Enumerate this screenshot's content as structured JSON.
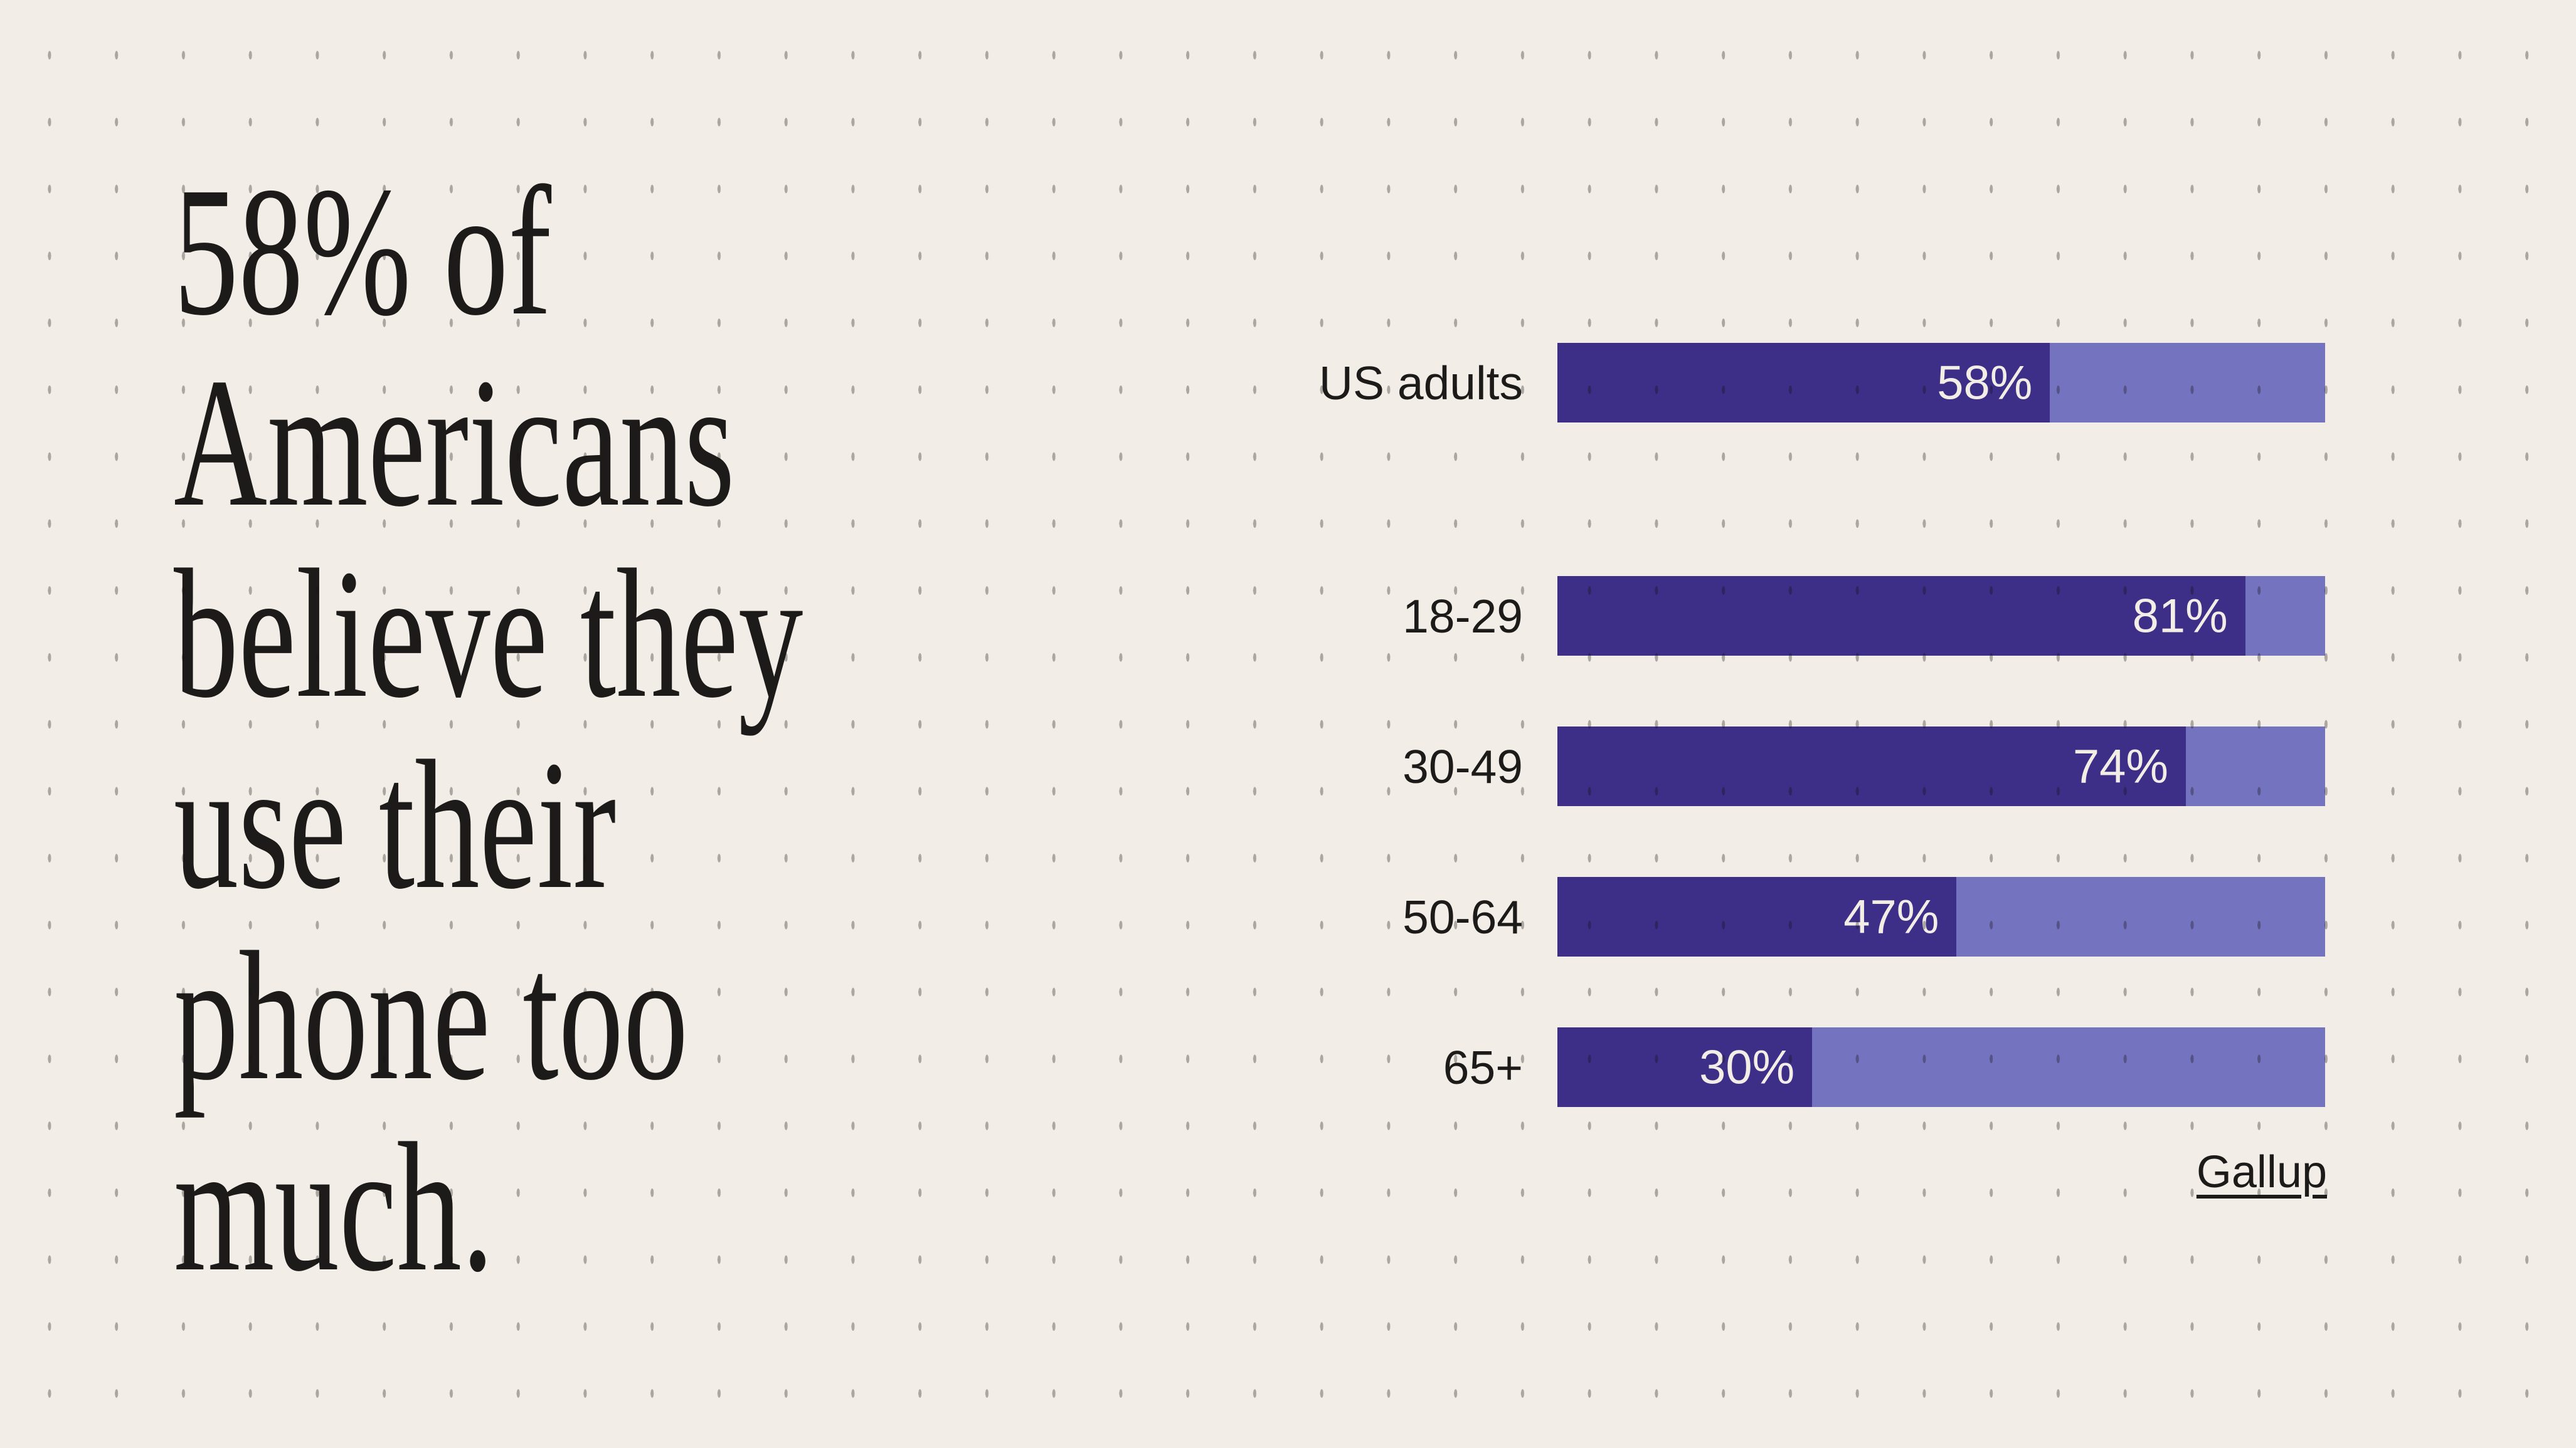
{
  "headline": {
    "lines": [
      "58% of",
      "Americans",
      "believe they",
      "use their",
      "phone too",
      "much."
    ],
    "full_text": "58% of Americans believe they use their phone too much."
  },
  "chart_data": {
    "type": "bar",
    "orientation": "horizontal",
    "categories": [
      "US adults",
      "18-29",
      "30-49",
      "50-64",
      "65+"
    ],
    "values": [
      58,
      81,
      74,
      47,
      30
    ],
    "value_labels": [
      "58%",
      "81%",
      "74%",
      "47%",
      "30%"
    ],
    "series": [
      {
        "name": "Believe they use their phone too much",
        "values": [
          58,
          81,
          74,
          47,
          30
        ]
      }
    ],
    "xlabel": "",
    "ylabel": "",
    "xlim": [
      0,
      90.4
    ],
    "grid": false,
    "legend": false,
    "group_gap_after_index": 0,
    "source": "Gallup"
  },
  "colors": {
    "background": "#f2eee7",
    "ink": "#1d1b1a",
    "bar_fill": "#3d2e88",
    "bar_track": "#7473bf",
    "value_text": "#f2ede5",
    "grid_dot": "rgba(20,16,12,0.32)"
  }
}
